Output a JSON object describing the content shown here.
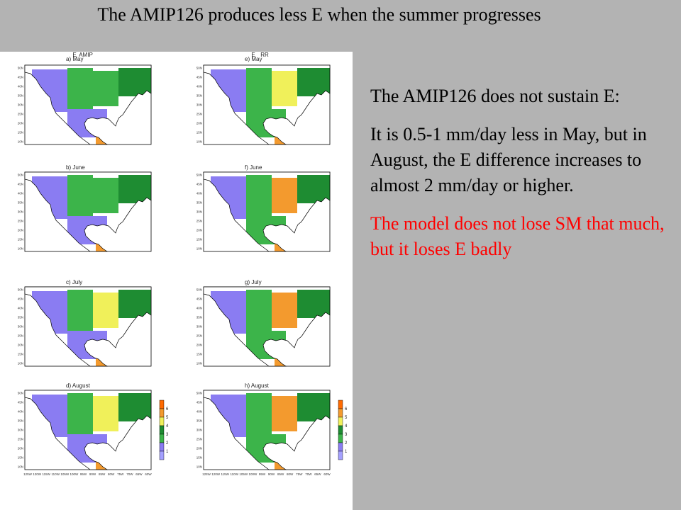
{
  "title": "The AMIP126 produces less E when the summer progresses",
  "figure": {
    "columns": [
      {
        "var": "E",
        "model": "AMIP"
      },
      {
        "var": "E",
        "model": "RR"
      }
    ],
    "panels": [
      {
        "id": "a",
        "label": "a) May",
        "col": 0,
        "row": 0
      },
      {
        "id": "b",
        "label": "b) June",
        "col": 0,
        "row": 1
      },
      {
        "id": "c",
        "label": "c) July",
        "col": 0,
        "row": 2
      },
      {
        "id": "d",
        "label": "d) August",
        "col": 0,
        "row": 3
      },
      {
        "id": "e",
        "label": "e) May",
        "col": 1,
        "row": 0
      },
      {
        "id": "f",
        "label": "f) June",
        "col": 1,
        "row": 1
      },
      {
        "id": "g",
        "label": "g) July",
        "col": 1,
        "row": 2
      },
      {
        "id": "h",
        "label": "h) August",
        "col": 1,
        "row": 3
      }
    ],
    "lat_ticks": [
      "50N",
      "45N",
      "40N",
      "35N",
      "30N",
      "25N",
      "20N",
      "15N",
      "10N"
    ],
    "lon_ticks": [
      "125W",
      "120W",
      "115W",
      "110W",
      "105W",
      "100W",
      "95W",
      "90W",
      "85W",
      "80W",
      "75W",
      "70W",
      "65W",
      "60W"
    ],
    "colorbar": {
      "levels": [
        "1",
        "2",
        "3",
        "4",
        "5",
        "6"
      ],
      "colors": [
        "#a4a0ff",
        "#8a7cf2",
        "#3cb44a",
        "#1e8c32",
        "#f0f05a",
        "#f39a2e",
        "#ff6a00"
      ]
    }
  },
  "points": [
    "The AMIP126 does not sustain E:",
    "It is  0.5-1 mm/day less in May, but  in August, the E difference increases to almost 2 mm/day or higher."
  ],
  "note": "The model does not lose SM that much, but it loses E badly"
}
